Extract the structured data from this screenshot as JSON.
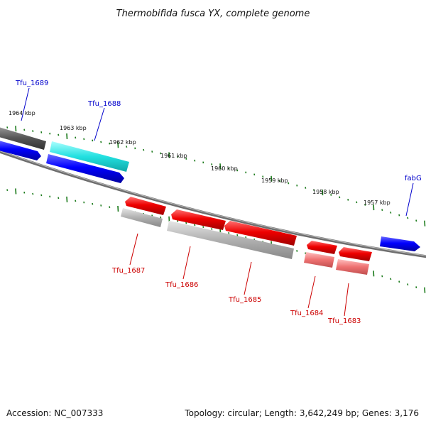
{
  "title": "Thermobifida fusca YX, complete genome",
  "accession": "Accession: NC_007333",
  "topology": "Topology: circular; Length: 3,642,249 bp; Genes: 3,176",
  "kbp_labels": [
    "1964 kbp",
    "1963 kbp",
    "1962 kbp",
    "1961 kbp",
    "1960 kbp",
    "1959 kbp",
    "1958 kbp",
    "1957 kbp"
  ],
  "genes_forward": [
    "Tfu_1689",
    "Tfu_1688",
    "fabG"
  ],
  "genes_reverse": [
    "Tfu_1687",
    "Tfu_1686",
    "Tfu_1685",
    "Tfu_1684",
    "Tfu_1683"
  ],
  "colors": {
    "forward_label": "#0000cc",
    "reverse_label": "#cc0000",
    "backbone": "#777777",
    "tick": "#1a7a1a",
    "blue_gene": "#0000ff",
    "cyan_gene": "#22dddd",
    "red_gene": "#ee0000",
    "grey_gene": "#a8a8a8",
    "pink_gene": "#ee7070"
  }
}
